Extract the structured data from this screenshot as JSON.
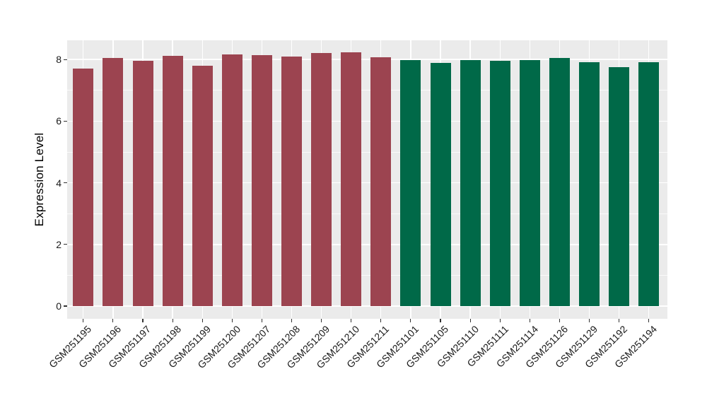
{
  "figure": {
    "background": "#FFFFFF",
    "panel_background": "#EBEBEB",
    "grid_color": "#FFFFFF",
    "axis_text_color": "#1A1A1A",
    "axis_title_color": "#000000",
    "tick_mark_color": "#333333"
  },
  "chart_data": {
    "type": "bar",
    "title": "",
    "xlabel": "",
    "ylabel": "Expression Level",
    "ylim": [
      0,
      8.63
    ],
    "yticks": [
      0,
      2,
      4,
      6,
      8
    ],
    "yticks_minor": [
      1,
      3,
      5,
      7
    ],
    "grid": true,
    "legend": "none",
    "categories": [
      "GSM251195",
      "GSM251196",
      "GSM251197",
      "GSM251198",
      "GSM251199",
      "GSM251200",
      "GSM251207",
      "GSM251208",
      "GSM251209",
      "GSM251210",
      "GSM251211",
      "GSM251101",
      "GSM251105",
      "GSM251110",
      "GSM251111",
      "GSM251114",
      "GSM251126",
      "GSM251129",
      "GSM251192",
      "GSM251194"
    ],
    "values": [
      7.7,
      8.04,
      7.95,
      8.11,
      7.8,
      8.16,
      8.14,
      8.1,
      8.2,
      8.23,
      8.08,
      7.98,
      7.89,
      7.99,
      7.96,
      7.99,
      8.04,
      7.91,
      7.76,
      7.92
    ],
    "bar_colors": [
      "#9C4450",
      "#9C4450",
      "#9C4450",
      "#9C4450",
      "#9C4450",
      "#9C4450",
      "#9C4450",
      "#9C4450",
      "#9C4450",
      "#9C4450",
      "#9C4450",
      "#006948",
      "#006948",
      "#006948",
      "#006948",
      "#006948",
      "#006948",
      "#006948",
      "#006948",
      "#006948"
    ],
    "group_colors": {
      "left_group": "#9C4450",
      "right_group": "#006948"
    }
  }
}
